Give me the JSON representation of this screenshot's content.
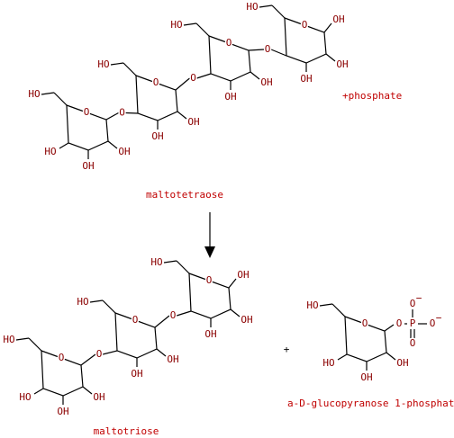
{
  "reactants": [
    {
      "name": "maltotetraose",
      "atoms": [
        "HO",
        "O",
        "OH",
        "OH",
        "HO",
        "O",
        "HO",
        "O",
        "OH",
        "OH",
        "O",
        "HO",
        "O",
        "OH",
        "OH",
        "O",
        "HO",
        "O",
        "OH",
        "OH",
        "OH"
      ]
    },
    {
      "name": "+phosphate"
    }
  ],
  "plus": "+",
  "products": [
    {
      "name": "maltotriose",
      "atoms": [
        "HO",
        "O",
        "OH",
        "OH",
        "HO",
        "O",
        "HO",
        "O",
        "OH",
        "OH",
        "O",
        "HO",
        "O",
        "OH",
        "OH",
        "OH"
      ]
    },
    {
      "name": "a-D-glucopyranose 1-phosphate",
      "atoms": [
        "HO",
        "O",
        "OH",
        "OH",
        "HO",
        "O",
        "P",
        "O",
        "−",
        "O",
        "−",
        "O"
      ]
    }
  ]
}
